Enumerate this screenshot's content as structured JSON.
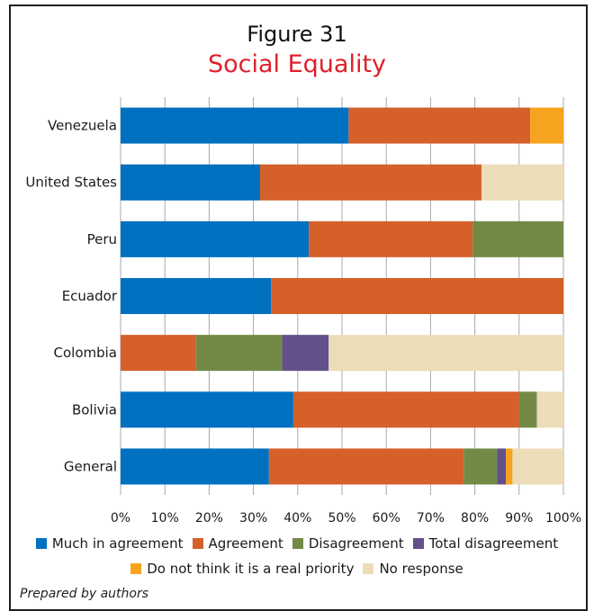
{
  "figure_label": "Figure 31",
  "title": "Social Equality",
  "source_note": "Prepared by authors",
  "colors": {
    "Much in agreement": "#0070c0",
    "Agreement": "#d5602a",
    "Disagreement": "#728a46",
    "Total disagreement": "#62518a",
    "Do not think it is a real priority": "#f6a31f",
    "No response": "#eddcb8"
  },
  "legend": {
    "row1": [
      "Much in agreement",
      "Agreement",
      "Disagreement",
      "Total disagreement"
    ],
    "row2": [
      "Do not think it is a real priority",
      "No response"
    ]
  },
  "chart_data": {
    "type": "bar",
    "orientation": "horizontal",
    "stacked": true,
    "categories": [
      "Venezuela",
      "United States",
      "Peru",
      "Ecuador",
      "Colombia",
      "Bolivia",
      "General"
    ],
    "xlim": [
      0,
      100
    ],
    "x_ticks": [
      "0%",
      "10%",
      "20%",
      "30%",
      "40%",
      "50%",
      "60%",
      "70%",
      "80%",
      "90%",
      "100%"
    ],
    "grid": true,
    "legend_position": "bottom",
    "series": [
      {
        "name": "Much in agreement",
        "values": [
          51.5,
          31.5,
          42.5,
          34,
          0,
          39,
          33.5
        ]
      },
      {
        "name": "Agreement",
        "values": [
          41,
          50,
          37,
          66,
          17,
          51,
          44
        ]
      },
      {
        "name": "Disagreement",
        "values": [
          0,
          0,
          20.5,
          0,
          19.5,
          4,
          7.5
        ]
      },
      {
        "name": "Total disagreement",
        "values": [
          0,
          0,
          0,
          0,
          10.5,
          0,
          2
        ]
      },
      {
        "name": "Do not think it is a real priority",
        "values": [
          7.5,
          0,
          0,
          0,
          0,
          0,
          1.5
        ]
      },
      {
        "name": "No response",
        "values": [
          0,
          18.5,
          0,
          0,
          53,
          6,
          11.5
        ]
      }
    ]
  }
}
